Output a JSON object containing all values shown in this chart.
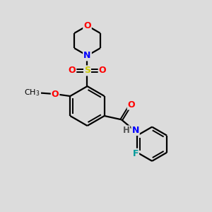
{
  "background_color": "#dcdcdc",
  "bond_color": "#000000",
  "atom_colors": {
    "O": "#ff0000",
    "N": "#0000ff",
    "S": "#cccc00",
    "F": "#009999",
    "C": "#000000",
    "H": "#555555"
  },
  "figsize": [
    3.0,
    3.0
  ],
  "dpi": 100
}
